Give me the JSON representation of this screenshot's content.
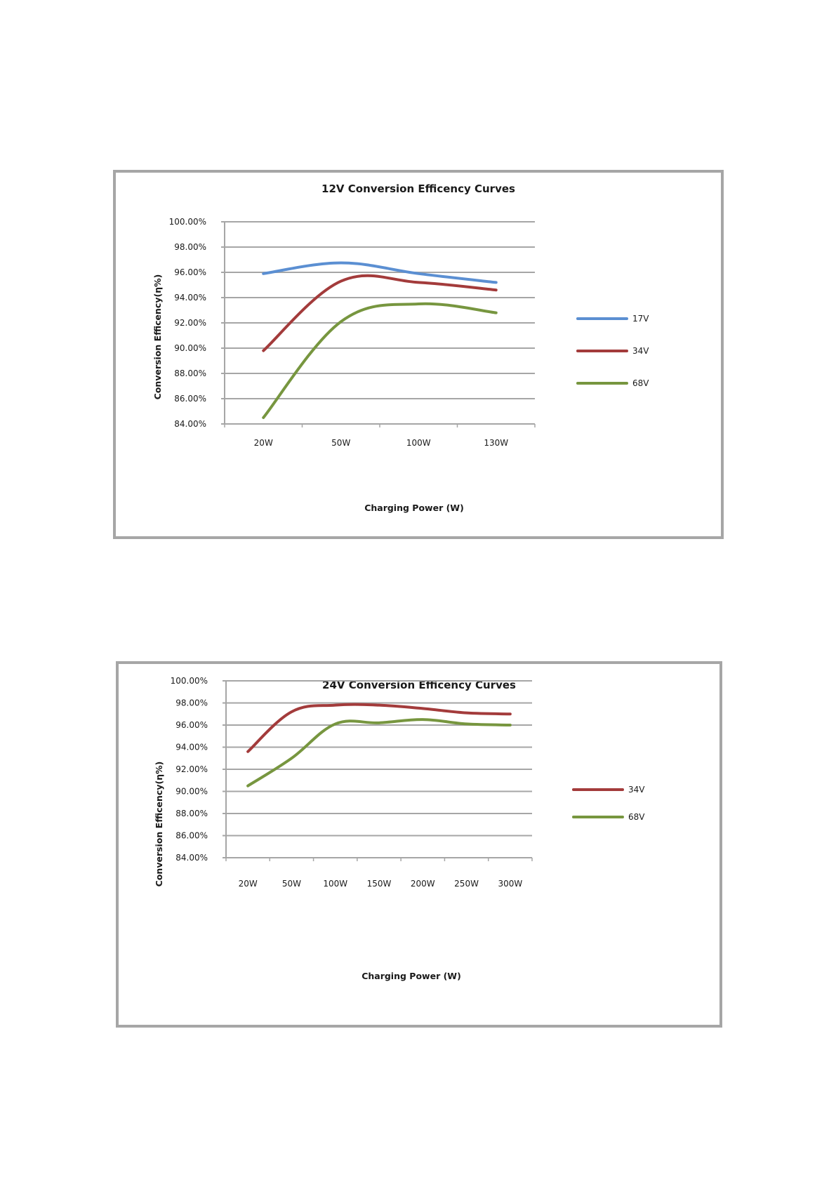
{
  "chart_data": [
    {
      "type": "line",
      "title": "12V  Conversion Efficency Curves",
      "xlabel": "Charging  Power  (W)",
      "ylabel": "Conversion Efficency(η%)",
      "categories": [
        "20W",
        "50W",
        "100W",
        "130W"
      ],
      "y_ticks": [
        "84.00%",
        "86.00%",
        "88.00%",
        "90.00%",
        "92.00%",
        "94.00%",
        "96.00%",
        "98.00%",
        "100.00%"
      ],
      "ylim": [
        84,
        100
      ],
      "grid": true,
      "legend_position": "right",
      "series": [
        {
          "name": "17V",
          "color": "#5b8fd2",
          "values": [
            95.9,
            96.75,
            95.9,
            95.2
          ]
        },
        {
          "name": "34V",
          "color": "#a33b3b",
          "values": [
            89.8,
            95.3,
            95.2,
            94.6
          ]
        },
        {
          "name": "68V",
          "color": "#77963f",
          "values": [
            84.5,
            92.1,
            93.5,
            92.8
          ]
        }
      ]
    },
    {
      "type": "line",
      "title": "24V  Conversion Efficency Curves",
      "xlabel": "Charging  Power  (W)",
      "ylabel": "Conversion Efficency(η%)",
      "categories": [
        "20W",
        "50W",
        "100W",
        "150W",
        "200W",
        "250W",
        "300W"
      ],
      "y_ticks": [
        "84.00%",
        "86.00%",
        "88.00%",
        "90.00%",
        "92.00%",
        "94.00%",
        "96.00%",
        "98.00%",
        "100.00%"
      ],
      "ylim": [
        84,
        100
      ],
      "grid": true,
      "legend_position": "right",
      "series": [
        {
          "name": "34V",
          "color": "#a33b3b",
          "values": [
            93.6,
            97.2,
            97.8,
            97.8,
            97.5,
            97.1,
            97.0
          ]
        },
        {
          "name": "68V",
          "color": "#77963f",
          "values": [
            90.5,
            93.0,
            96.1,
            96.2,
            96.5,
            96.1,
            96.0
          ]
        }
      ]
    }
  ]
}
